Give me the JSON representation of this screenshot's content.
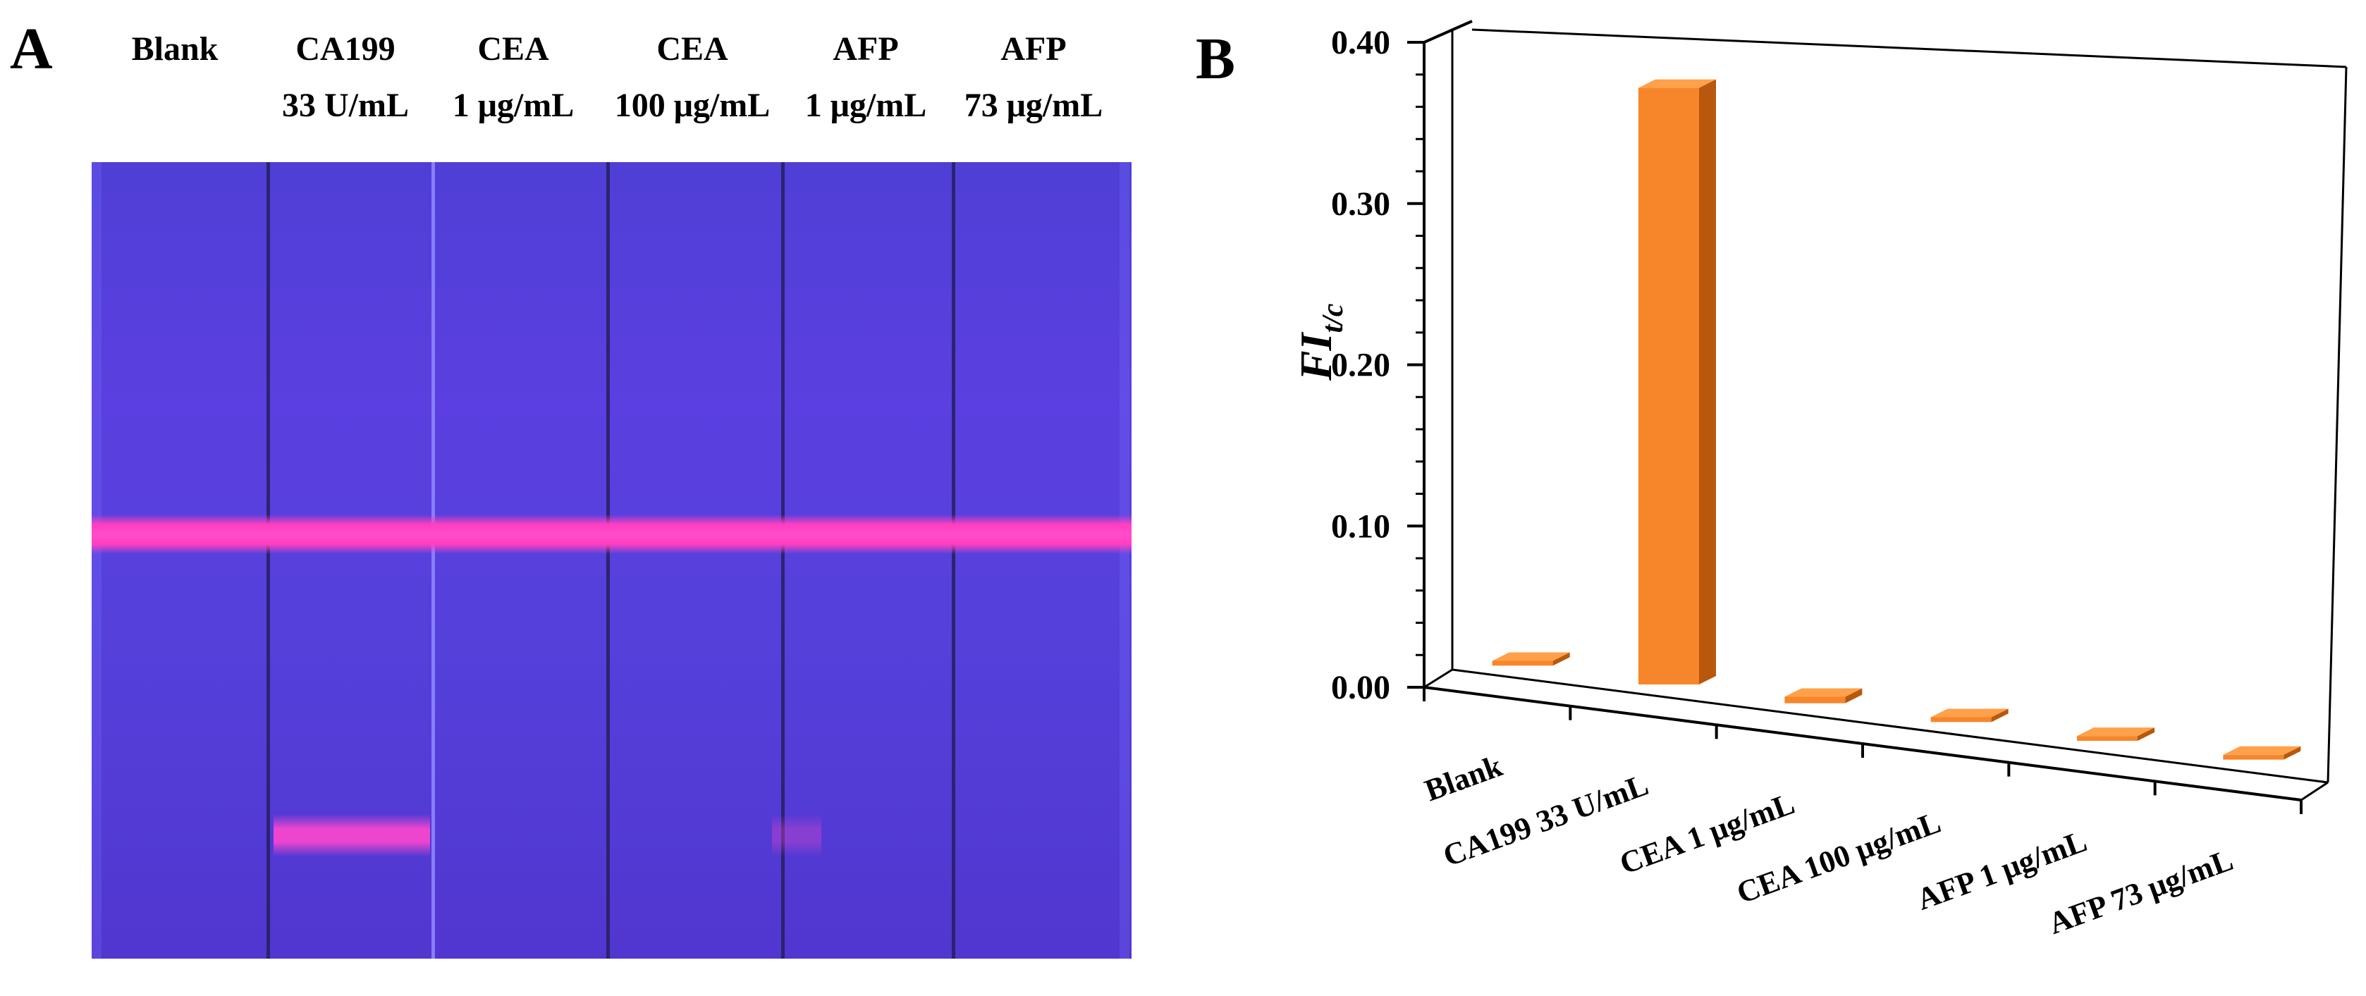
{
  "panel_a": {
    "letter": "A",
    "columns": [
      {
        "line1": "Blank",
        "line2": ""
      },
      {
        "line1": "CA199",
        "line2": "33 U/mL"
      },
      {
        "line1": "CEA",
        "line2": "1 μg/mL"
      },
      {
        "line1": "CEA",
        "line2": "100 μg/mL"
      },
      {
        "line1": "AFP",
        "line2": "1 μg/mL"
      },
      {
        "line1": "AFP",
        "line2": "73 μg/mL"
      }
    ]
  },
  "panel_b": {
    "letter": "B"
  },
  "chart_data": {
    "type": "bar",
    "categories": [
      "Blank",
      "CA199 33 U/mL",
      "CEA 1 μg/mL",
      "CEA 100 μg/mL",
      "AFP 1 μg/mL",
      "AFP 73 μg/mL"
    ],
    "values": [
      0.003,
      0.37,
      0.004,
      0.003,
      0.003,
      0.003
    ],
    "ylabel": "FI",
    "ylabel_sub": "t/c",
    "ylim": [
      0,
      0.4
    ],
    "yticks": [
      "0.00",
      "0.10",
      "0.20",
      "0.30",
      "0.40"
    ],
    "ytick_values": [
      0,
      0.1,
      0.2,
      0.3,
      0.4
    ],
    "bar_color": "#f7862a",
    "style": "3d"
  }
}
